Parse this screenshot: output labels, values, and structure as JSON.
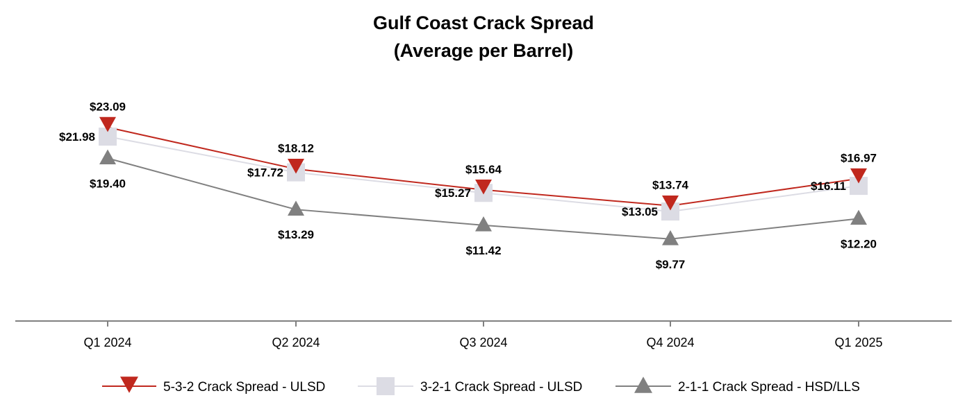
{
  "chart_data": {
    "type": "line",
    "title": "Gulf Coast Crack Spread",
    "subtitle": "(Average per Barrel)",
    "categories": [
      "Q1 2024",
      "Q2 2024",
      "Q3 2024",
      "Q4 2024",
      "Q1 2025"
    ],
    "ylim": [
      0,
      30
    ],
    "grid": false,
    "legend": "bottom",
    "series": [
      {
        "name": "5-3-2 Crack Spread - ULSD",
        "values": [
          23.09,
          18.12,
          15.64,
          13.74,
          16.97
        ],
        "labels": [
          "$23.09",
          "$18.12",
          "$15.64",
          "$13.74",
          "$16.97"
        ],
        "color": "#c0281e",
        "marker": "triangle-down"
      },
      {
        "name": "3-2-1 Crack Spread - ULSD",
        "values": [
          21.98,
          17.72,
          15.27,
          13.05,
          16.11
        ],
        "labels": [
          "$21.98",
          "$17.72",
          "$15.27",
          "$13.05",
          "$16.11"
        ],
        "color": "#dcdce4",
        "marker": "square"
      },
      {
        "name": "2-1-1 Crack Spread - HSD/LLS",
        "values": [
          19.4,
          13.29,
          11.42,
          9.77,
          12.2
        ],
        "labels": [
          "$19.40",
          "$13.29",
          "$11.42",
          "$9.77",
          "$12.20"
        ],
        "color": "#808080",
        "marker": "triangle-up"
      }
    ]
  }
}
